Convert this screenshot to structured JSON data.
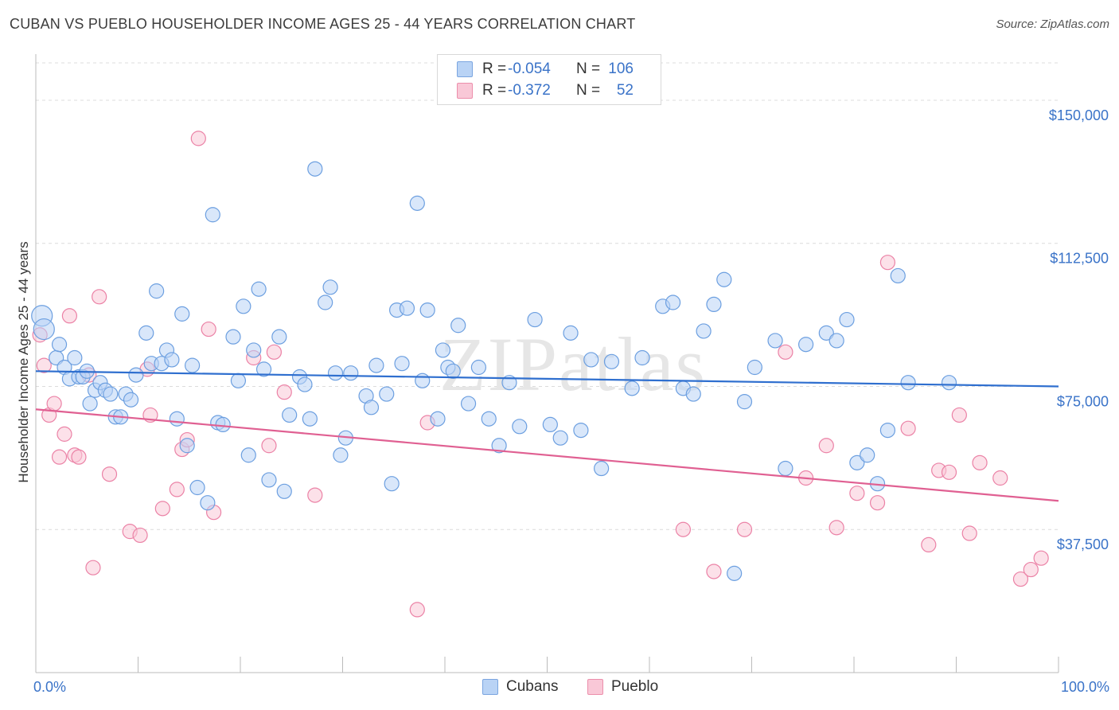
{
  "title": "CUBAN VS PUEBLO HOUSEHOLDER INCOME AGES 25 - 44 YEARS CORRELATION CHART",
  "source": "Source: ZipAtlas.com",
  "legend": {
    "rows": [
      {
        "r_label": "R =",
        "r_value": "-0.054",
        "n_label": "N =",
        "n_value": "106",
        "color": "#6c9fe0"
      },
      {
        "r_label": "R =",
        "r_value": "-0.372",
        "n_label": "N =",
        "n_value": "52",
        "color": "#eb82a6"
      }
    ]
  },
  "bottom_legend": [
    "Cubans",
    "Pueblo"
  ],
  "x_min_label": "0.0%",
  "x_max_label": "100.0%",
  "ylabel": "Householder Income Ages 25 - 44 years",
  "watermark": "ZIPatlas",
  "chart_data": {
    "type": "scatter",
    "xlabel": "",
    "ylabel": "Householder Income Ages 25 - 44 years",
    "xlim": [
      0,
      100
    ],
    "ylim": [
      0,
      160000
    ],
    "y_ticks": [
      37500,
      75000,
      112500,
      150000
    ],
    "y_tick_labels": [
      "$37,500",
      "$75,000",
      "$112,500",
      "$150,000"
    ],
    "grid": "horizontal dashed",
    "series": [
      {
        "name": "Cubans",
        "color": "#6c9fe0",
        "fill": "#b9d3f5",
        "trend": {
          "x": [
            0,
            100
          ],
          "y": [
            79000,
            75000
          ]
        },
        "points": [
          [
            0.6,
            93500
          ],
          [
            0.8,
            90000
          ],
          [
            2,
            82500
          ],
          [
            2.3,
            86000
          ],
          [
            2.8,
            80000
          ],
          [
            3.3,
            77000
          ],
          [
            3.8,
            82500
          ],
          [
            4.2,
            77500
          ],
          [
            4.6,
            77500
          ],
          [
            5,
            79000
          ],
          [
            5.3,
            70500
          ],
          [
            5.8,
            74000
          ],
          [
            6.3,
            76000
          ],
          [
            6.8,
            74000
          ],
          [
            7.3,
            73000
          ],
          [
            7.8,
            67000
          ],
          [
            8.3,
            67000
          ],
          [
            8.8,
            73000
          ],
          [
            9.3,
            71500
          ],
          [
            9.8,
            78000
          ],
          [
            10.8,
            89000
          ],
          [
            11.3,
            81000
          ],
          [
            11.8,
            100000
          ],
          [
            12.3,
            81000
          ],
          [
            12.8,
            84500
          ],
          [
            13.3,
            82000
          ],
          [
            13.8,
            66500
          ],
          [
            14.3,
            94000
          ],
          [
            14.8,
            59500
          ],
          [
            15.3,
            80500
          ],
          [
            15.8,
            48500
          ],
          [
            16.8,
            44500
          ],
          [
            17.3,
            120000
          ],
          [
            17.8,
            65500
          ],
          [
            18.3,
            65000
          ],
          [
            19.3,
            88000
          ],
          [
            19.8,
            76500
          ],
          [
            20.3,
            96000
          ],
          [
            20.8,
            57000
          ],
          [
            21.3,
            84500
          ],
          [
            21.8,
            100500
          ],
          [
            22.3,
            79500
          ],
          [
            22.8,
            50500
          ],
          [
            23.8,
            88000
          ],
          [
            24.3,
            47500
          ],
          [
            24.8,
            67500
          ],
          [
            25.8,
            77500
          ],
          [
            26.3,
            75500
          ],
          [
            26.8,
            66500
          ],
          [
            27.3,
            132000
          ],
          [
            28.3,
            97000
          ],
          [
            28.8,
            101000
          ],
          [
            29.3,
            78500
          ],
          [
            29.8,
            57000
          ],
          [
            30.3,
            61500
          ],
          [
            30.8,
            78500
          ],
          [
            32.3,
            72500
          ],
          [
            32.8,
            69500
          ],
          [
            33.3,
            80500
          ],
          [
            34.3,
            73000
          ],
          [
            34.8,
            49500
          ],
          [
            35.3,
            95000
          ],
          [
            35.8,
            81000
          ],
          [
            36.3,
            95500
          ],
          [
            37.3,
            123000
          ],
          [
            37.8,
            76500
          ],
          [
            38.3,
            95000
          ],
          [
            39.3,
            66500
          ],
          [
            39.8,
            84500
          ],
          [
            40.3,
            80000
          ],
          [
            40.8,
            79000
          ],
          [
            41.3,
            91000
          ],
          [
            42.3,
            70500
          ],
          [
            43.3,
            80000
          ],
          [
            44.3,
            66500
          ],
          [
            45.3,
            59500
          ],
          [
            46.3,
            76000
          ],
          [
            47.3,
            64500
          ],
          [
            48.8,
            92500
          ],
          [
            50.3,
            65000
          ],
          [
            51.3,
            61500
          ],
          [
            52.3,
            89000
          ],
          [
            53.3,
            63500
          ],
          [
            54.3,
            82000
          ],
          [
            55.3,
            53500
          ],
          [
            56.3,
            81500
          ],
          [
            58.3,
            74500
          ],
          [
            59.3,
            82500
          ],
          [
            61.3,
            96000
          ],
          [
            62.3,
            97000
          ],
          [
            63.3,
            74500
          ],
          [
            64.3,
            73000
          ],
          [
            65.3,
            89500
          ],
          [
            66.3,
            96500
          ],
          [
            67.3,
            103000
          ],
          [
            68.3,
            26000
          ],
          [
            69.3,
            71000
          ],
          [
            70.3,
            80000
          ],
          [
            72.3,
            87000
          ],
          [
            73.3,
            53500
          ],
          [
            75.3,
            86000
          ],
          [
            77.3,
            89000
          ],
          [
            78.3,
            87000
          ],
          [
            79.3,
            92500
          ],
          [
            80.3,
            55000
          ],
          [
            81.3,
            57000
          ],
          [
            82.3,
            49500
          ],
          [
            83.3,
            63500
          ],
          [
            84.3,
            104000
          ],
          [
            85.3,
            76000
          ],
          [
            89.3,
            76000
          ]
        ]
      },
      {
        "name": "Pueblo",
        "color": "#eb82a6",
        "fill": "#f9c8d7",
        "trend": {
          "x": [
            0,
            100
          ],
          "y": [
            69000,
            45000
          ]
        },
        "points": [
          [
            0.4,
            88500
          ],
          [
            0.8,
            80500
          ],
          [
            1.3,
            67500
          ],
          [
            1.8,
            70500
          ],
          [
            2.3,
            56500
          ],
          [
            2.8,
            62500
          ],
          [
            3.3,
            93500
          ],
          [
            3.8,
            57000
          ],
          [
            4.2,
            56500
          ],
          [
            5.2,
            78000
          ],
          [
            5.6,
            27500
          ],
          [
            6.2,
            98500
          ],
          [
            7.2,
            52000
          ],
          [
            9.2,
            37000
          ],
          [
            10.2,
            36000
          ],
          [
            10.9,
            79500
          ],
          [
            11.2,
            67500
          ],
          [
            12.4,
            43000
          ],
          [
            13.8,
            48000
          ],
          [
            14.3,
            58500
          ],
          [
            14.8,
            61000
          ],
          [
            15.9,
            140000
          ],
          [
            16.9,
            90000
          ],
          [
            17.4,
            42000
          ],
          [
            21.3,
            82500
          ],
          [
            22.8,
            59500
          ],
          [
            23.3,
            84000
          ],
          [
            24.3,
            73500
          ],
          [
            27.3,
            46500
          ],
          [
            37.3,
            16500
          ],
          [
            38.3,
            65500
          ],
          [
            63.3,
            37500
          ],
          [
            66.3,
            26500
          ],
          [
            69.3,
            37500
          ],
          [
            73.3,
            84000
          ],
          [
            75.3,
            51000
          ],
          [
            77.3,
            59500
          ],
          [
            78.3,
            38000
          ],
          [
            80.3,
            47000
          ],
          [
            82.3,
            44500
          ],
          [
            83.3,
            107500
          ],
          [
            85.3,
            64000
          ],
          [
            87.3,
            33500
          ],
          [
            88.3,
            53000
          ],
          [
            89.3,
            52500
          ],
          [
            90.3,
            67500
          ],
          [
            91.3,
            36500
          ],
          [
            92.3,
            55000
          ],
          [
            94.3,
            51000
          ],
          [
            96.3,
            24500
          ],
          [
            97.3,
            27000
          ],
          [
            98.3,
            30000
          ]
        ]
      }
    ]
  }
}
